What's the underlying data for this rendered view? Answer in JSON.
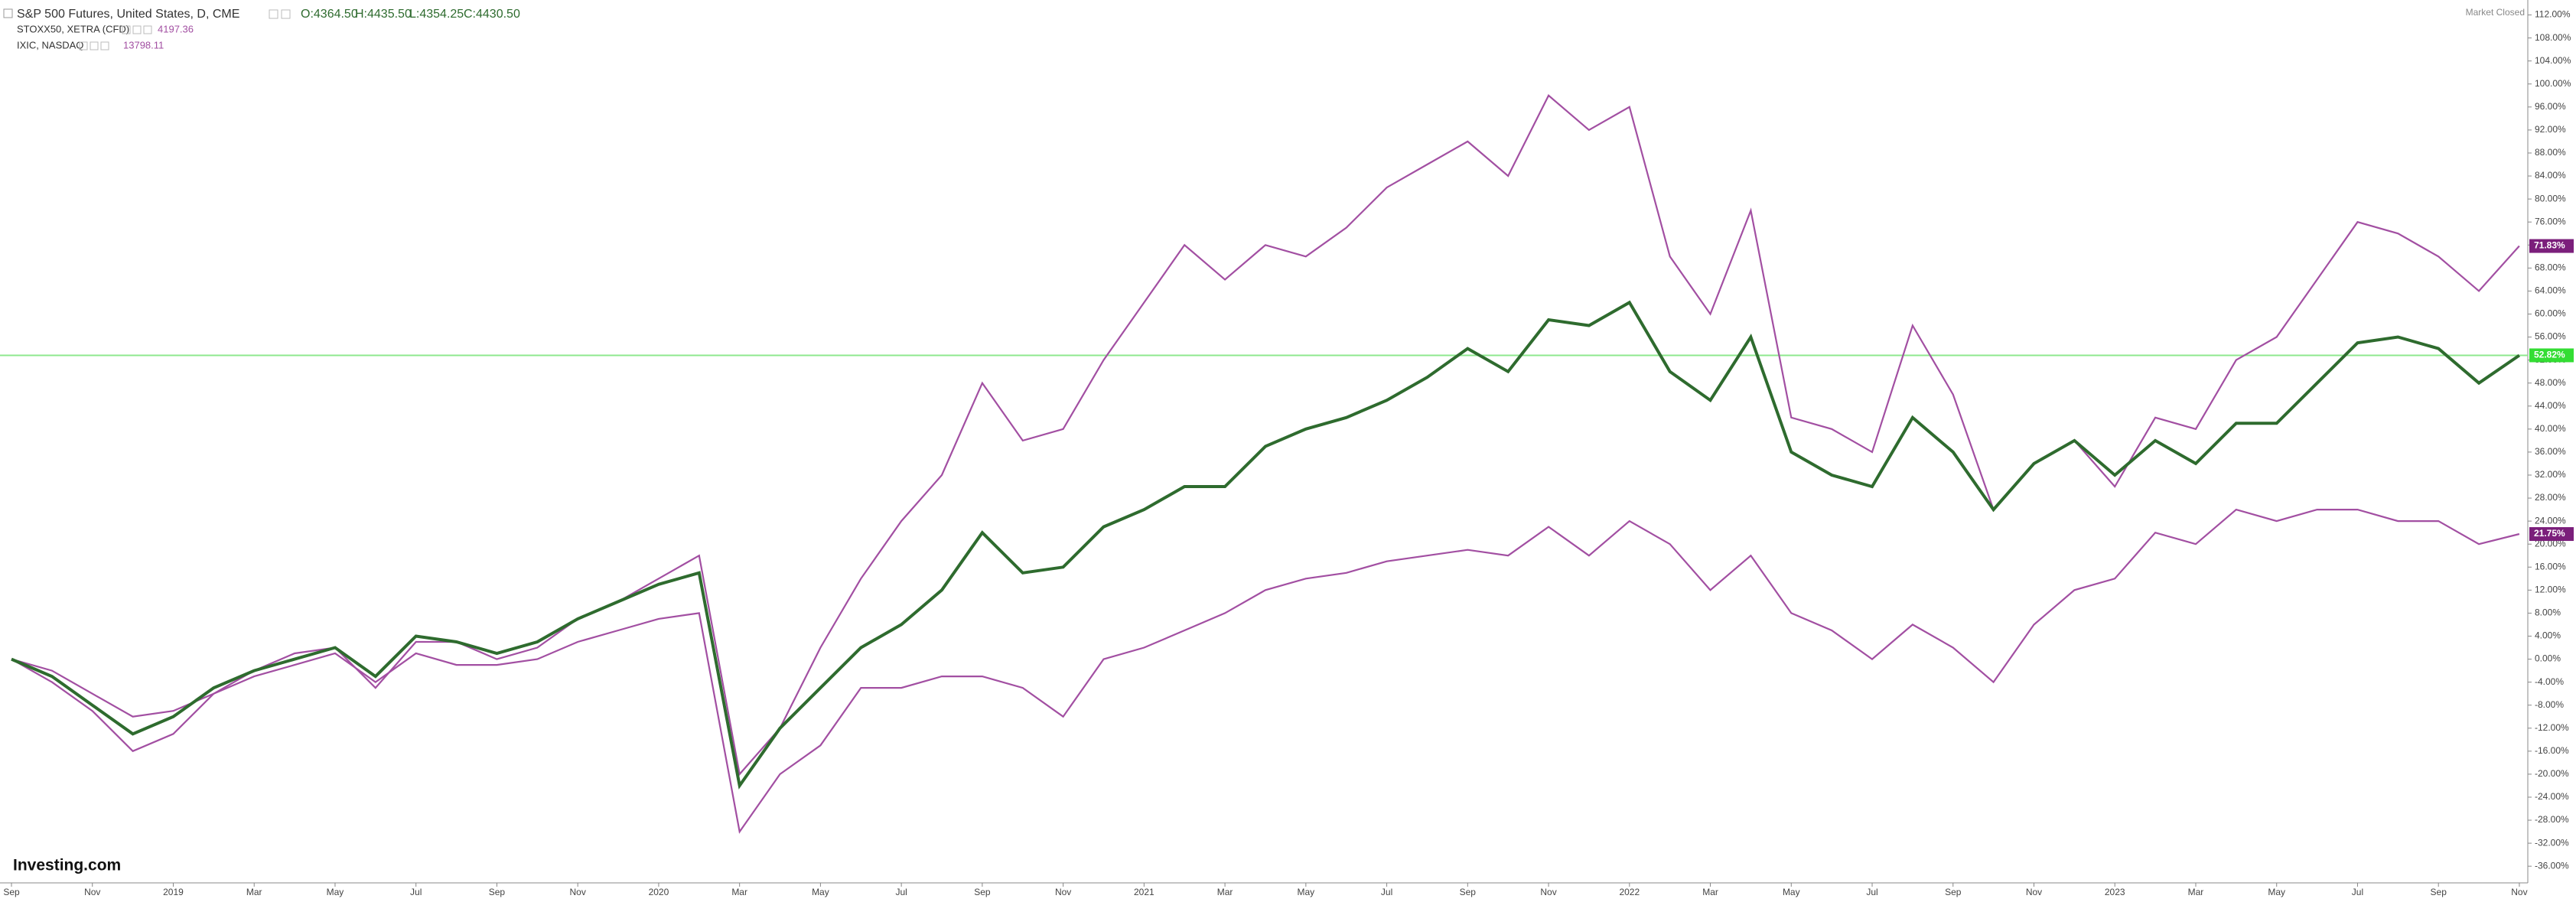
{
  "chart_data": {
    "type": "line",
    "title": "S&P 500 Futures, United States, D, CME",
    "ohlc": [
      "O:4364.50",
      "H:4435.50",
      "L:4354.25",
      "C:4430.50"
    ],
    "status": "Market Closed",
    "logo": "Investing.com",
    "categories": [
      "Sep",
      null,
      "Nov",
      null,
      "2019",
      null,
      "Mar",
      null,
      "May",
      null,
      "Jul",
      null,
      "Sep",
      null,
      "Nov",
      null,
      "2020",
      null,
      "Mar",
      null,
      "May",
      null,
      "Jul",
      null,
      "Sep",
      null,
      "Nov",
      null,
      "2021",
      null,
      "Mar",
      null,
      "May",
      null,
      "Jul",
      null,
      "Sep",
      null,
      "Nov",
      null,
      "2022",
      null,
      "Mar",
      null,
      "May",
      null,
      "Jul",
      null,
      "Sep",
      null,
      "Nov",
      null,
      "2023",
      null,
      "Mar",
      null,
      "May",
      null,
      "Jul",
      null,
      "Sep",
      null,
      "Nov"
    ],
    "series": [
      {
        "name": "S&P 500 Futures, United States, D, CME",
        "color": "#2e6b2e",
        "label_color": "#7b1f7b",
        "values": [
          0,
          -3,
          -8,
          -13,
          -10,
          -5,
          -2,
          0,
          2,
          -3,
          4,
          3,
          1,
          3,
          7,
          10,
          13,
          15,
          -22,
          -12,
          -5,
          2,
          6,
          12,
          22,
          15,
          16,
          23,
          26,
          30,
          30,
          37,
          40,
          42,
          45,
          49,
          54,
          50,
          59,
          58,
          62,
          50,
          45,
          56,
          36,
          32,
          30,
          42,
          36,
          26,
          34,
          38,
          32,
          38,
          34,
          41,
          41,
          48,
          55,
          56,
          54,
          48,
          52.82
        ],
        "value_labels": [
          null,
          null,
          null,
          null,
          null,
          null,
          null,
          null,
          null,
          null,
          null,
          null,
          null,
          null,
          null,
          null,
          null,
          null,
          null,
          null,
          null,
          null,
          null,
          null,
          null,
          null,
          null,
          null,
          null,
          null,
          null,
          null,
          null,
          null,
          null,
          null,
          null,
          null,
          null,
          null,
          null,
          null,
          null,
          null,
          null,
          null,
          null,
          null,
          null,
          null,
          null,
          null,
          null,
          null,
          null,
          null,
          null,
          null,
          null,
          null,
          null,
          null,
          "52.82%"
        ]
      },
      {
        "name": "STOXX50, XETRA (CFD)",
        "last_price": 4197.36,
        "color": "#a24fa2",
        "values": [
          0,
          -2,
          -6,
          -10,
          -9,
          -6,
          -3,
          -1,
          1,
          -4,
          1,
          -1,
          -1,
          0,
          3,
          5,
          7,
          8,
          -30,
          -20,
          -15,
          -5,
          -5,
          -3,
          -3,
          -5,
          -10,
          0,
          2,
          5,
          8,
          12,
          14,
          15,
          17,
          18,
          19,
          18,
          23,
          18,
          24,
          20,
          12,
          18,
          8,
          5,
          0,
          6,
          2,
          -4,
          6,
          12,
          14,
          22,
          20,
          26,
          24,
          26,
          26,
          24,
          24,
          20,
          21.75
        ],
        "value_labels": [
          null,
          null,
          null,
          null,
          null,
          null,
          null,
          null,
          null,
          null,
          null,
          null,
          null,
          null,
          null,
          null,
          null,
          null,
          null,
          null,
          null,
          null,
          null,
          null,
          null,
          null,
          null,
          null,
          null,
          null,
          null,
          null,
          null,
          null,
          null,
          null,
          null,
          null,
          null,
          null,
          null,
          null,
          null,
          null,
          null,
          null,
          null,
          null,
          null,
          null,
          null,
          null,
          null,
          null,
          null,
          null,
          null,
          null,
          null,
          null,
          null,
          null,
          "21.75%"
        ]
      },
      {
        "name": "IXIC, NASDAQ",
        "last_price": 13798.11,
        "color": "#a24fa2",
        "values": [
          0,
          -4,
          -9,
          -16,
          -13,
          -6,
          -2,
          1,
          2,
          -5,
          3,
          3,
          0,
          2,
          7,
          10,
          14,
          18,
          -20,
          -12,
          2,
          14,
          24,
          32,
          48,
          38,
          40,
          52,
          62,
          72,
          66,
          72,
          70,
          75,
          82,
          86,
          90,
          84,
          98,
          92,
          96,
          70,
          60,
          78,
          42,
          40,
          36,
          58,
          46,
          26,
          34,
          38,
          30,
          42,
          40,
          52,
          56,
          66,
          76,
          74,
          70,
          64,
          71.83
        ],
        "value_labels": [
          null,
          null,
          null,
          null,
          null,
          null,
          null,
          null,
          null,
          null,
          null,
          null,
          null,
          null,
          null,
          null,
          null,
          null,
          null,
          null,
          null,
          null,
          null,
          null,
          null,
          null,
          null,
          null,
          null,
          null,
          null,
          null,
          null,
          null,
          null,
          null,
          null,
          null,
          null,
          null,
          null,
          null,
          null,
          null,
          null,
          null,
          null,
          null,
          null,
          null,
          null,
          null,
          null,
          null,
          null,
          null,
          null,
          null,
          null,
          null,
          null,
          null,
          "71.83%"
        ]
      }
    ],
    "ylim": [
      -38.9,
      114.6
    ],
    "yticks": [
      {
        "value": 112,
        "label": "112.00%"
      },
      {
        "value": 108,
        "label": "108.00%"
      },
      {
        "value": 104,
        "label": "104.00%"
      },
      {
        "value": 100,
        "label": "100.00%"
      },
      {
        "value": 96,
        "label": "96.00%"
      },
      {
        "value": 92,
        "label": "92.00%"
      },
      {
        "value": 88,
        "label": "88.00%"
      },
      {
        "value": 84,
        "label": "84.00%"
      },
      {
        "value": 80,
        "label": "80.00%"
      },
      {
        "value": 76,
        "label": "76.00%"
      },
      {
        "value": 72,
        "label": "72.00%"
      },
      {
        "value": 68,
        "label": "68.00%"
      },
      {
        "value": 64,
        "label": "64.00%"
      },
      {
        "value": 60,
        "label": "60.00%"
      },
      {
        "value": 56,
        "label": "56.00%"
      },
      {
        "value": 52,
        "label": "52.00%"
      },
      {
        "value": 48,
        "label": "48.00%"
      },
      {
        "value": 44,
        "label": "44.00%"
      },
      {
        "value": 40,
        "label": "40.00%"
      },
      {
        "value": 36,
        "label": "36.00%"
      },
      {
        "value": 32,
        "label": "32.00%"
      },
      {
        "value": 28,
        "label": "28.00%"
      },
      {
        "value": 24,
        "label": "24.00%"
      },
      {
        "value": 20,
        "label": "20.00%"
      },
      {
        "value": 16,
        "label": "16.00%"
      },
      {
        "value": 12,
        "label": "12.00%"
      },
      {
        "value": 8,
        "label": "8.00%"
      },
      {
        "value": 4,
        "label": "4.00%"
      },
      {
        "value": 0,
        "label": "0.00%"
      },
      {
        "value": -4,
        "label": "-4.00%"
      },
      {
        "value": -8,
        "label": "-8.00%"
      },
      {
        "value": -12,
        "label": "-12.00%"
      },
      {
        "value": -16,
        "label": "-16.00%"
      },
      {
        "value": -20,
        "label": "-20.00%"
      },
      {
        "value": -24,
        "label": "-24.00%"
      },
      {
        "value": -28,
        "label": "-28.00%"
      },
      {
        "value": -32,
        "label": "-32.00%"
      },
      {
        "value": -36,
        "label": "-36.00%"
      }
    ],
    "grid": false
  }
}
